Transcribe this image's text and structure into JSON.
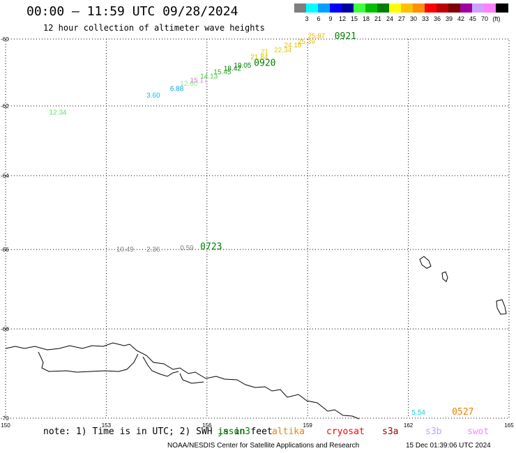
{
  "title": "00:00 – 11:59 UTC 09/28/2024",
  "subtitle": "12 hour collection of altimeter wave heights",
  "legend": {
    "colors": [
      "#7f7f7f",
      "#00ffff",
      "#00a0ff",
      "#0000ff",
      "#0000a0",
      "#40ff40",
      "#00c000",
      "#008000",
      "#ffff00",
      "#ffc000",
      "#ff9000",
      "#ff0000",
      "#c00000",
      "#800000",
      "#a000a0",
      "#d0a0ff",
      "#ff80ff",
      "#000000"
    ],
    "labels": [
      "3",
      "6",
      "9",
      "12",
      "15",
      "18",
      "21",
      "24",
      "27",
      "30",
      "33",
      "36",
      "39",
      "42",
      "45",
      "70",
      "(ft)"
    ],
    "unit": "(ft)"
  },
  "axes": {
    "x_ticks": [
      "150",
      "153",
      "156",
      "159",
      "162",
      "165"
    ],
    "y_ticks": [
      "-60",
      "-62",
      "-64",
      "-66",
      "-68",
      "-70"
    ]
  },
  "obs": [
    {
      "text": "12.34",
      "color": "#60e060",
      "lon": 151.3,
      "lat": -62.25
    },
    {
      "text": "3.60",
      "color": "#00c8e8",
      "lon": 154.2,
      "lat": -61.75
    },
    {
      "text": "6.88",
      "color": "#00a0e0",
      "lon": 154.9,
      "lat": -61.55
    },
    {
      "text": "12.60",
      "color": "#88ee88",
      "lon": 155.2,
      "lat": -61.4
    },
    {
      "text": "15.17",
      "color": "#e080e0",
      "lon": 155.5,
      "lat": -61.3
    },
    {
      "text": "14.13",
      "color": "#40d040",
      "lon": 155.8,
      "lat": -61.18
    },
    {
      "text": "15.45",
      "color": "#20b020",
      "lon": 156.2,
      "lat": -61.05
    },
    {
      "text": "18.42",
      "color": "#008000",
      "lon": 156.5,
      "lat": -60.95
    },
    {
      "text": "19.05",
      "color": "#008000",
      "lon": 156.8,
      "lat": -60.85
    },
    {
      "text": "21.84",
      "color": "#c8c800",
      "lon": 157.3,
      "lat": -60.6
    },
    {
      "text": "21",
      "color": "#e0d000",
      "lon": 157.6,
      "lat": -60.45
    },
    {
      "text": "22.34",
      "color": "#e0c800",
      "lon": 158.0,
      "lat": -60.4
    },
    {
      "text": "24.18",
      "color": "#e8c000",
      "lon": 158.3,
      "lat": -60.25
    },
    {
      "text": "25.39",
      "color": "#f0c000",
      "lon": 158.7,
      "lat": -60.15
    },
    {
      "text": "25.87",
      "color": "#f0b000",
      "lon": 159.0,
      "lat": -59.98
    },
    {
      "text": "10.49",
      "color": "#7f7f7f",
      "lon": 153.3,
      "lat": -66.05
    },
    {
      "text": "2.36",
      "color": "#7f7f7f",
      "lon": 154.2,
      "lat": -66.05
    },
    {
      "text": "0.59",
      "color": "#7f7f7f",
      "lon": 155.2,
      "lat": -66.02
    },
    {
      "text": "5.54",
      "color": "#00d0e8",
      "lon": 162.1,
      "lat": -69.92
    }
  ],
  "passes": [
    {
      "text": "0921",
      "color": "#008000",
      "lon": 159.8,
      "lat": -60.0
    },
    {
      "text": "0920",
      "color": "#008000",
      "lon": 157.4,
      "lat": -60.8
    },
    {
      "text": "0723",
      "color": "#008000",
      "lon": 155.8,
      "lat": -66.0
    },
    {
      "text": "0527",
      "color": "#f08000",
      "lon": 163.3,
      "lat": -69.92
    }
  ],
  "note": "note: 1) Time is in UTC; 2) SWH is in feet",
  "satellites": [
    {
      "name": "jason3",
      "color": "#008000"
    },
    {
      "name": "altika",
      "color": "#f08000"
    },
    {
      "name": "cryosat",
      "color": "#ff0000"
    },
    {
      "name": "s3a",
      "color": "#a00000"
    },
    {
      "name": "s3b",
      "color": "#c0a0ff"
    },
    {
      "name": "swot",
      "color": "#ff80ff"
    }
  ],
  "footer": "NOAA/NESDIS Center for Satellite Applications and Research",
  "footer_time": "15 Dec 01:39:06 UTC 2024"
}
